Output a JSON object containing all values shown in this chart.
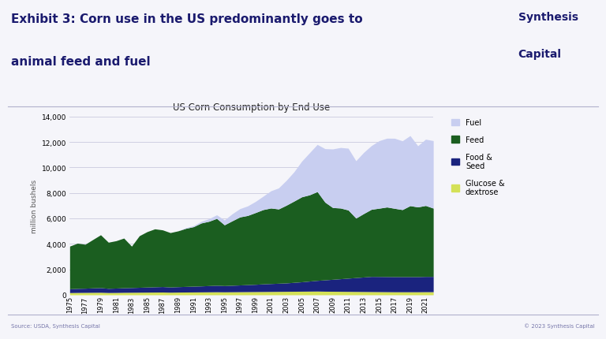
{
  "title": "US Corn Consumption by End Use",
  "exhibit_line1": "Exhibit 3: Corn use in the US predominantly goes to",
  "exhibit_line2": "animal feed and fuel",
  "logo_line1": "Synthesis",
  "logo_line2": "Capital",
  "ylabel": "million bushels",
  "source_text": "Source: USDA, Synthesis Capital",
  "copyright_text": "© 2023 Synthesis Capital",
  "ylim": [
    0,
    14000
  ],
  "yticks": [
    0,
    2000,
    4000,
    6000,
    8000,
    10000,
    12000,
    14000
  ],
  "background_color": "#f5f5fa",
  "title_color": "#1a1a6e",
  "years": [
    1975,
    1976,
    1977,
    1978,
    1979,
    1980,
    1981,
    1982,
    1983,
    1984,
    1985,
    1986,
    1987,
    1988,
    1989,
    1990,
    1991,
    1992,
    1993,
    1994,
    1995,
    1996,
    1997,
    1998,
    1999,
    2000,
    2001,
    2002,
    2003,
    2004,
    2005,
    2006,
    2007,
    2008,
    2009,
    2010,
    2011,
    2012,
    2013,
    2014,
    2015,
    2016,
    2017,
    2018,
    2019,
    2020,
    2021,
    2022
  ],
  "glucose_dextrose": [
    170,
    180,
    185,
    190,
    195,
    175,
    180,
    190,
    195,
    200,
    205,
    210,
    215,
    200,
    210,
    215,
    220,
    225,
    230,
    235,
    230,
    235,
    240,
    245,
    250,
    255,
    260,
    265,
    270,
    275,
    280,
    285,
    290,
    280,
    275,
    270,
    265,
    260,
    255,
    250,
    245,
    240,
    235,
    235,
    235,
    235,
    240,
    240
  ],
  "food_seed": [
    300,
    320,
    330,
    350,
    365,
    330,
    345,
    360,
    370,
    385,
    400,
    415,
    430,
    410,
    425,
    440,
    455,
    470,
    490,
    510,
    490,
    510,
    530,
    550,
    570,
    600,
    620,
    640,
    660,
    700,
    740,
    790,
    840,
    890,
    940,
    990,
    1040,
    1090,
    1140,
    1190,
    1190,
    1190,
    1190,
    1190,
    1190,
    1190,
    1200,
    1200
  ],
  "feed": [
    3350,
    3550,
    3450,
    3800,
    4150,
    3620,
    3720,
    3900,
    3250,
    4050,
    4350,
    4550,
    4450,
    4270,
    4380,
    4560,
    4670,
    4940,
    5050,
    5250,
    4770,
    5060,
    5340,
    5430,
    5630,
    5830,
    5930,
    5830,
    6100,
    6380,
    6670,
    6770,
    6970,
    6100,
    5630,
    5550,
    5350,
    4670,
    4980,
    5270,
    5360,
    5460,
    5360,
    5260,
    5570,
    5470,
    5570,
    5360
  ],
  "fuel": [
    0,
    0,
    0,
    0,
    0,
    0,
    0,
    0,
    0,
    0,
    0,
    0,
    0,
    0,
    0,
    50,
    80,
    130,
    200,
    280,
    380,
    550,
    650,
    750,
    870,
    1050,
    1350,
    1650,
    1950,
    2300,
    2800,
    3300,
    3700,
    4200,
    4600,
    4750,
    4850,
    4500,
    4800,
    5000,
    5300,
    5400,
    5500,
    5400,
    5500,
    4800,
    5200,
    5300
  ],
  "colors": {
    "fuel": "#c8cef0",
    "feed": "#1b5e20",
    "food_seed": "#1a237e",
    "glucose_dextrose": "#d4e157"
  },
  "header_bg": "#f5f5fa",
  "separator_color": "#b0b0cc",
  "footer_text_color": "#7777aa"
}
